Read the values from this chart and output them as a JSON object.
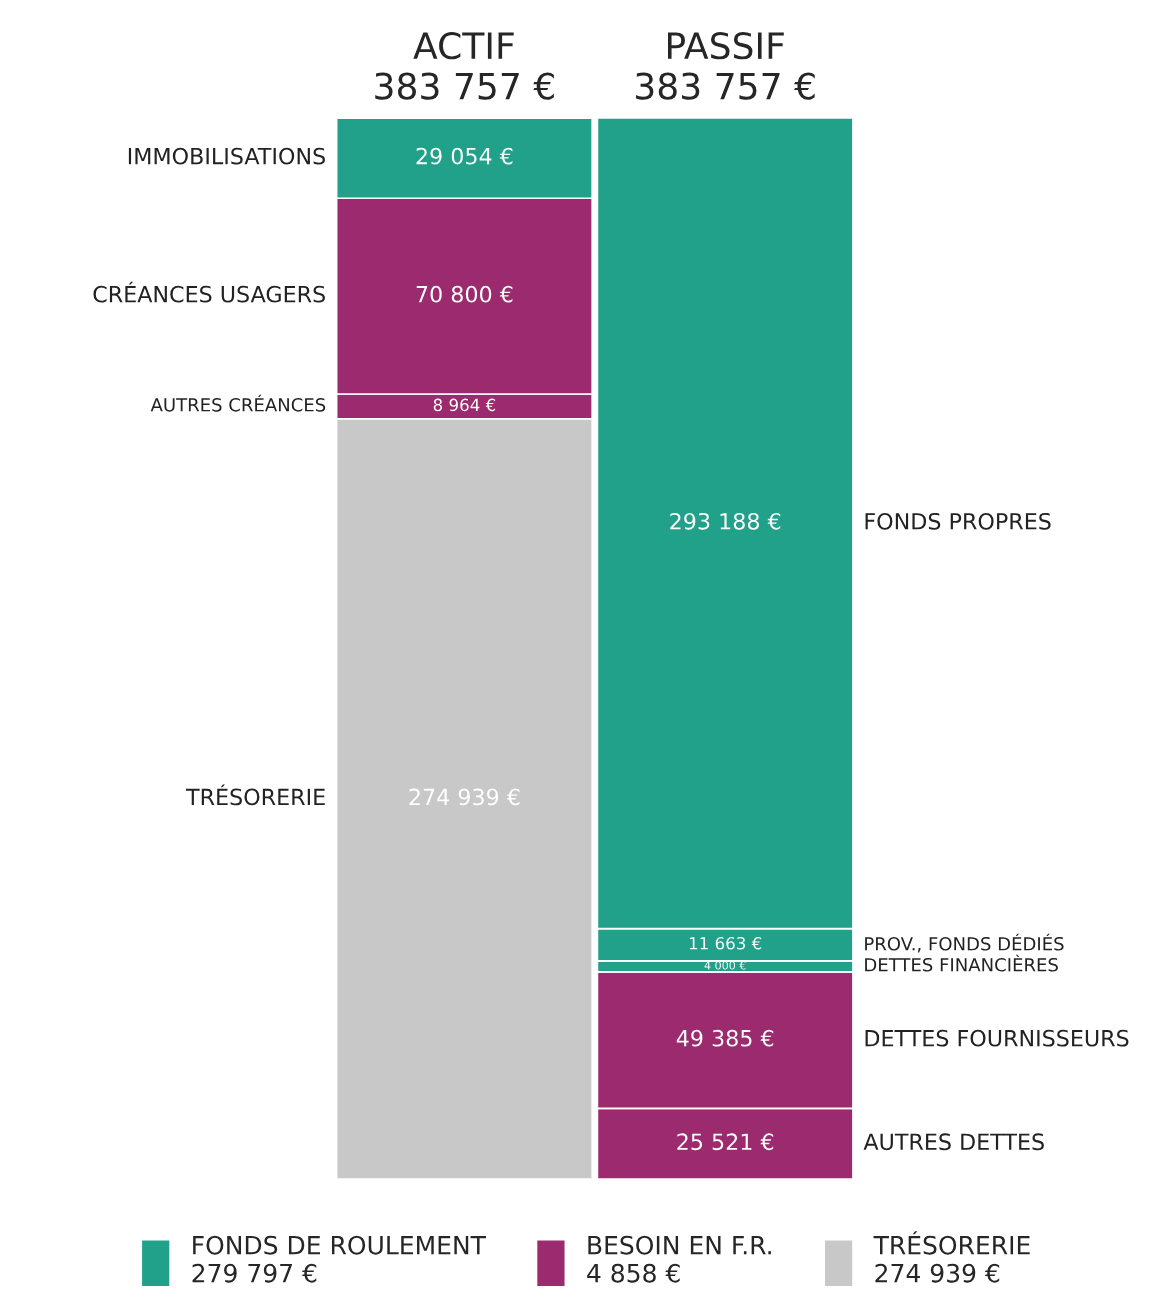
{
  "chart_data": {
    "type": "bar",
    "stacked": true,
    "tick_labels": "x",
    "legend": "bottom",
    "categories": [
      "ACTIF\n383 757 €",
      "PASSIF\n383 757 €"
    ],
    "series": [
      {
        "name": "TRÉSORERIE",
        "color": "#c8c8c8",
        "values": [
          274939,
          null
        ],
        "value_labels": [
          "274 939 €",
          null
        ]
      },
      {
        "name": "AUTRES CRÉANCES",
        "color": "#9b2a6e",
        "values": [
          8964,
          null
        ],
        "value_labels": [
          "8 964 €",
          null
        ]
      },
      {
        "name": "CRÉANCES USAGERS",
        "color": "#9b2a6e",
        "values": [
          70800,
          null
        ],
        "value_labels": [
          "70 800 €",
          null
        ]
      },
      {
        "name": "IMMOBILISATIONS",
        "color": "#21a08a",
        "values": [
          29054,
          null
        ],
        "value_labels": [
          "29 054 €",
          null
        ]
      },
      {
        "name": "AUTRES DETTES",
        "color": "#9b2a6e",
        "values": [
          null,
          25521
        ],
        "value_labels": [
          null,
          "25 521 €"
        ]
      },
      {
        "name": "DETTES FOURNISSEURS",
        "color": "#9b2a6e",
        "values": [
          null,
          49385
        ],
        "value_labels": [
          null,
          "49 385 €"
        ]
      },
      {
        "name": "DETTES FINANCIÈRES",
        "color": "#21a08a",
        "values": [
          null,
          4000
        ],
        "value_labels": [
          null,
          "4 000 €"
        ]
      },
      {
        "name": "PROV., FONDS DÉDIÉS",
        "color": "#21a08a",
        "values": [
          null,
          11663
        ],
        "value_labels": [
          null,
          "11 663 €"
        ]
      },
      {
        "name": "FONDS PROPRES",
        "color": "#21a08a",
        "values": [
          null,
          293188
        ],
        "value_labels": [
          null,
          "293 188 €"
        ]
      }
    ],
    "annotations": [
      "FONDS DE ROULEMENT\n279 797 €",
      "BESOIN EN F.R.\n4 858 €",
      "TRÉSORERIE\n274 939 €"
    ]
  }
}
